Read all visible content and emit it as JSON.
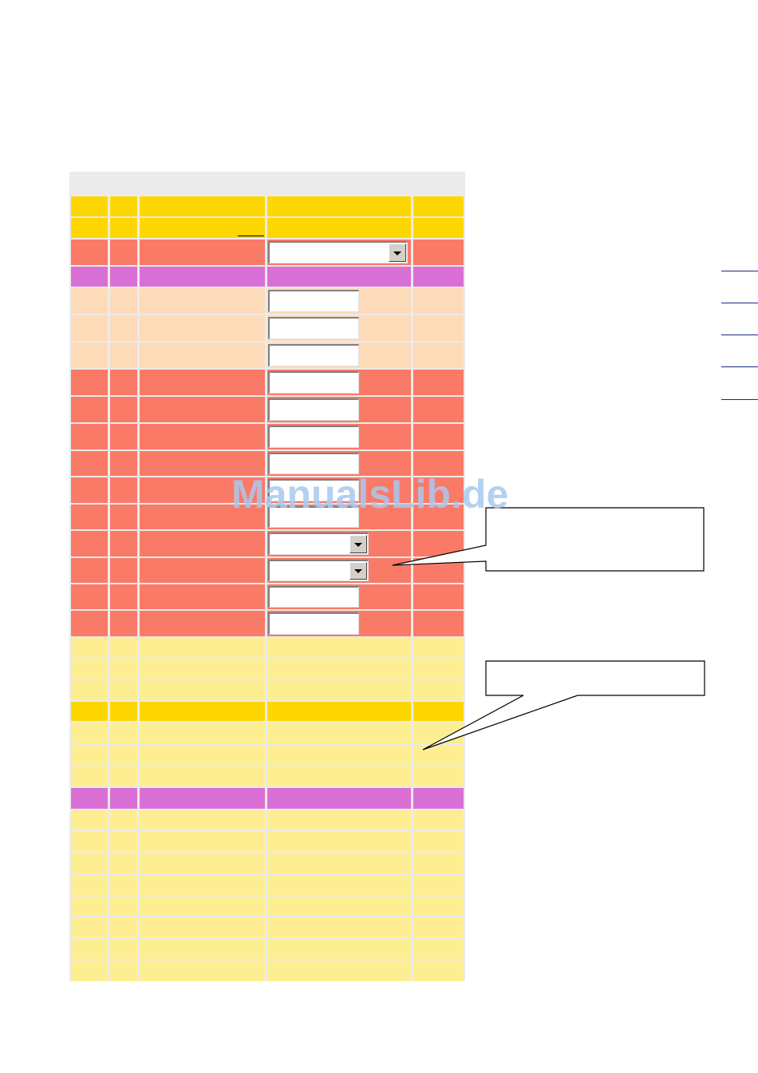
{
  "watermark": {
    "text": "ManualsLib.de",
    "color": "#a9c9ef"
  },
  "colors": {
    "header": "#ebebeb",
    "gold": "#ffd700",
    "salmon": "#fa7a68",
    "orchid": "#da70d6",
    "peach": "#fedbb8",
    "pale_yellow": "#feee92",
    "grid_line": "#ebebeb"
  },
  "table": {
    "column_count": 5,
    "rows": [
      {
        "color": "header"
      },
      {
        "color": "gold"
      },
      {
        "color": "gold",
        "underline": true
      },
      {
        "color": "salmon",
        "control": "select-wide"
      },
      {
        "color": "orchid"
      },
      {
        "color": "peach",
        "control": "input"
      },
      {
        "color": "peach",
        "control": "input"
      },
      {
        "color": "peach",
        "control": "input"
      },
      {
        "color": "salmon",
        "control": "input"
      },
      {
        "color": "salmon",
        "control": "input"
      },
      {
        "color": "salmon",
        "control": "input"
      },
      {
        "color": "salmon",
        "control": "input"
      },
      {
        "color": "salmon",
        "control": "input"
      },
      {
        "color": "salmon",
        "control": "input"
      },
      {
        "color": "salmon",
        "control": "select"
      },
      {
        "color": "salmon",
        "control": "select"
      },
      {
        "color": "salmon",
        "control": "input"
      },
      {
        "color": "salmon",
        "control": "input"
      },
      {
        "color": "pale_yellow"
      },
      {
        "color": "pale_yellow"
      },
      {
        "color": "pale_yellow"
      },
      {
        "color": "gold"
      },
      {
        "color": "pale_yellow"
      },
      {
        "color": "pale_yellow"
      },
      {
        "color": "pale_yellow"
      },
      {
        "color": "orchid"
      },
      {
        "color": "pale_yellow"
      },
      {
        "color": "pale_yellow"
      },
      {
        "color": "pale_yellow"
      },
      {
        "color": "pale_yellow"
      },
      {
        "color": "pale_yellow"
      },
      {
        "color": "pale_yellow"
      },
      {
        "color": "pale_yellow"
      },
      {
        "color": "pale_yellow"
      }
    ]
  },
  "side_links": {
    "count": 5,
    "color": "#1a2a80"
  },
  "callouts": {
    "count": 2
  }
}
